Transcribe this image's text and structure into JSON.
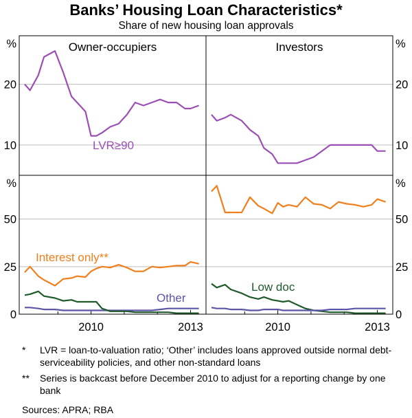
{
  "title": "Banks’ Housing Loan Characteristics*",
  "subtitle": "Share of new housing loan approvals",
  "colors": {
    "purple": "#9b4fb6",
    "orange": "#f07f1c",
    "green": "#1f5a2a",
    "navy": "#5b55a8",
    "grid": "#bdbdbd"
  },
  "notes": [
    {
      "mark": "*",
      "text": "LVR = loan-to-valuation ratio; ‘Other’ includes loans approved outside normal debt-serviceability policies, and other non-standard loans"
    },
    {
      "mark": "**",
      "text": "Series is backcast before December 2010 to adjust for a reporting change by one bank"
    }
  ],
  "sources": "Sources:  APRA; RBA",
  "chart_data": [
    {
      "type": "line",
      "panel": "top-left",
      "title": "Owner-occupiers",
      "unit_label": "%",
      "ylim": [
        5,
        28
      ],
      "yticks": [
        10,
        20
      ],
      "xlim": [
        2008.0,
        2013.3
      ],
      "series": [
        {
          "name": "LVR≥90",
          "color": "purple",
          "x": [
            2008.0,
            2008.16,
            2008.41,
            2008.58,
            2008.91,
            2009.16,
            2009.41,
            2009.58,
            2009.83,
            2010.0,
            2010.16,
            2010.33,
            2010.58,
            2010.83,
            2011.08,
            2011.33,
            2011.58,
            2011.83,
            2012.08,
            2012.33,
            2012.58,
            2012.83,
            2013.0,
            2013.25
          ],
          "y": [
            20,
            19,
            21.5,
            24.5,
            25.5,
            22,
            18,
            17,
            15.5,
            11.5,
            11.5,
            12,
            13,
            13.5,
            15,
            17,
            16.5,
            17,
            17.5,
            17,
            17,
            16,
            16,
            16.5
          ]
        }
      ]
    },
    {
      "type": "line",
      "panel": "top-right",
      "title": "Investors",
      "unit_label": "%",
      "ylim": [
        5,
        28
      ],
      "yticks": [
        10,
        20
      ],
      "xlim": [
        2008.0,
        2013.3
      ],
      "series": [
        {
          "color": "purple",
          "x": [
            2008.0,
            2008.16,
            2008.41,
            2008.58,
            2008.91,
            2009.16,
            2009.41,
            2009.58,
            2009.83,
            2010.0,
            2010.16,
            2010.33,
            2010.58,
            2010.83,
            2011.08,
            2011.33,
            2011.58,
            2011.83,
            2012.08,
            2012.33,
            2012.58,
            2012.83,
            2013.0,
            2013.25
          ],
          "y": [
            15,
            14,
            14.5,
            15,
            14,
            12.5,
            11.5,
            9.5,
            8.5,
            7,
            7,
            7,
            7,
            7.5,
            8,
            9,
            10,
            10,
            10,
            10,
            10,
            10,
            9,
            9
          ]
        }
      ]
    },
    {
      "type": "line",
      "panel": "bottom-left",
      "unit_label": "%",
      "ylim": [
        0,
        73
      ],
      "yticks": [
        0,
        25,
        50
      ],
      "xlim": [
        2008.0,
        2013.3
      ],
      "xticks": [
        2010,
        2013
      ],
      "series": [
        {
          "name": "Interest only**",
          "color": "orange",
          "x": [
            2008.0,
            2008.16,
            2008.41,
            2008.58,
            2008.91,
            2009.16,
            2009.41,
            2009.58,
            2009.83,
            2010.0,
            2010.16,
            2010.33,
            2010.58,
            2010.83,
            2011.08,
            2011.33,
            2011.58,
            2011.83,
            2012.08,
            2012.33,
            2012.58,
            2012.83,
            2013.0,
            2013.25
          ],
          "y": [
            22,
            25,
            20,
            18,
            15,
            18.5,
            19,
            20,
            19.5,
            22.5,
            24,
            25,
            24.5,
            26,
            24.5,
            22.5,
            22.5,
            25,
            24.5,
            25,
            25.5,
            25.5,
            27.5,
            26.5
          ]
        },
        {
          "name": "Other",
          "color": "navy",
          "x": [
            2008.0,
            2008.16,
            2008.41,
            2008.58,
            2008.91,
            2009.16,
            2009.41,
            2009.58,
            2009.83,
            2010.0,
            2010.16,
            2010.33,
            2010.58,
            2010.83,
            2011.08,
            2011.33,
            2011.58,
            2011.83,
            2012.08,
            2012.33,
            2012.58,
            2012.83,
            2013.0,
            2013.25
          ],
          "y": [
            3.5,
            3.5,
            3,
            2.5,
            2.5,
            2,
            2,
            2,
            2,
            2,
            2,
            2,
            2,
            2,
            2,
            2,
            2,
            2,
            2.5,
            3,
            3,
            3,
            3,
            3
          ]
        },
        {
          "color": "green",
          "x": [
            2008.0,
            2008.16,
            2008.41,
            2008.58,
            2008.91,
            2009.16,
            2009.41,
            2009.58,
            2009.83,
            2010.0,
            2010.16,
            2010.33,
            2010.58,
            2010.83,
            2011.08,
            2011.33,
            2011.58,
            2011.83,
            2012.08,
            2012.33,
            2012.58,
            2012.83,
            2013.0,
            2013.25
          ],
          "y": [
            10,
            10.5,
            12,
            9.5,
            8.5,
            7,
            7.5,
            6.5,
            6.5,
            6.5,
            6.5,
            3,
            1.5,
            1.5,
            1.5,
            1,
            1,
            1,
            1,
            1,
            0.5,
            0.5,
            0.5,
            0.5
          ]
        }
      ]
    },
    {
      "type": "line",
      "panel": "bottom-right",
      "unit_label": "%",
      "ylim": [
        0,
        73
      ],
      "yticks": [
        0,
        25,
        50
      ],
      "xlim": [
        2008.0,
        2013.3
      ],
      "xticks": [
        2010,
        2013
      ],
      "series": [
        {
          "color": "orange",
          "x": [
            2008.0,
            2008.16,
            2008.41,
            2008.58,
            2008.91,
            2009.16,
            2009.41,
            2009.58,
            2009.83,
            2010.0,
            2010.16,
            2010.33,
            2010.58,
            2010.83,
            2011.08,
            2011.33,
            2011.58,
            2011.83,
            2012.08,
            2012.33,
            2012.58,
            2012.83,
            2013.0,
            2013.25
          ],
          "y": [
            64.5,
            67.5,
            53.5,
            53.5,
            53.5,
            61.5,
            57,
            55.5,
            53,
            58.5,
            56.5,
            57.5,
            56.5,
            61.5,
            58,
            57.5,
            55.5,
            59,
            58,
            57.5,
            56.5,
            57.5,
            60.5,
            59
          ]
        },
        {
          "name": "Low doc",
          "color": "green",
          "x": [
            2008.0,
            2008.16,
            2008.41,
            2008.58,
            2008.91,
            2009.16,
            2009.41,
            2009.58,
            2009.83,
            2010.0,
            2010.16,
            2010.33,
            2010.58,
            2010.83,
            2011.08,
            2011.33,
            2011.58,
            2011.83,
            2012.08,
            2012.33,
            2012.58,
            2012.83,
            2013.0,
            2013.25
          ],
          "y": [
            16,
            14,
            15.5,
            13,
            11,
            9,
            8,
            9,
            7.5,
            7,
            6.5,
            7,
            5,
            3,
            2,
            1.5,
            1,
            1,
            1,
            0.5,
            0.5,
            0.5,
            0.5,
            0.5
          ]
        },
        {
          "color": "navy",
          "x": [
            2008.0,
            2008.16,
            2008.41,
            2008.58,
            2008.91,
            2009.16,
            2009.41,
            2009.58,
            2009.83,
            2010.0,
            2010.16,
            2010.33,
            2010.58,
            2010.83,
            2011.08,
            2011.33,
            2011.58,
            2011.83,
            2012.08,
            2012.33,
            2012.58,
            2012.83,
            2013.0,
            2013.25
          ],
          "y": [
            3.5,
            3,
            3,
            2.5,
            2.5,
            2,
            2,
            2.5,
            2.5,
            2.5,
            2,
            2,
            2,
            2,
            2,
            2,
            2.5,
            2.5,
            2.5,
            3,
            3,
            3,
            3,
            3
          ]
        }
      ]
    }
  ]
}
